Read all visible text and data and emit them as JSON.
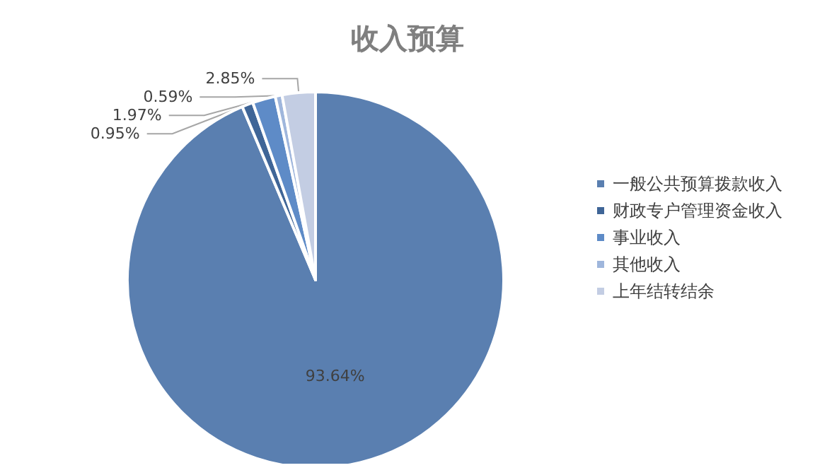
{
  "chart_data": {
    "type": "pie",
    "title": "收入预算",
    "categories": [
      "一般公共预算拨款收入",
      "财政专户管理资金收入",
      "事业收入",
      "其他收入",
      "上年结转结余"
    ],
    "values": [
      93.64,
      0.95,
      1.97,
      0.59,
      2.85
    ],
    "value_labels": [
      "93.64%",
      "0.95%",
      "1.97%",
      "0.59%",
      "2.85%"
    ],
    "colors": [
      "#5a7fb0",
      "#3f6597",
      "#5e8bc7",
      "#9fb6dc",
      "#c3cde3"
    ],
    "legend": "right"
  }
}
